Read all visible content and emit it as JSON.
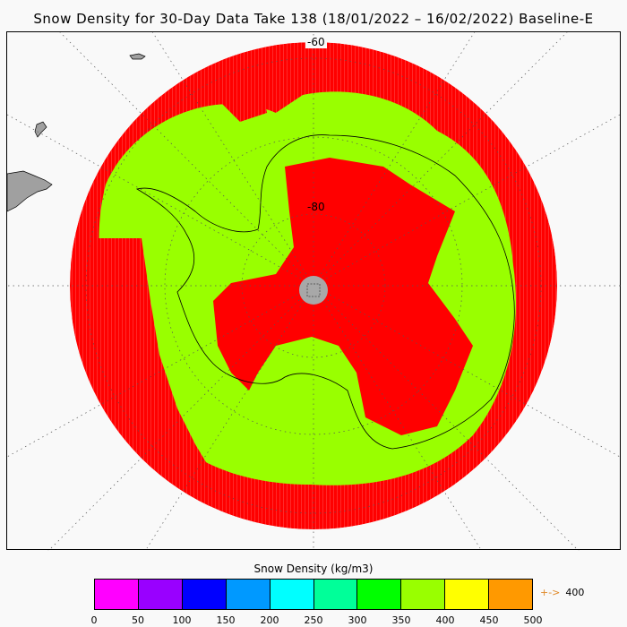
{
  "title": "Snow Density for 30-Day Data Take 138 (18/01/2022 – 16/02/2022) Baseline-E",
  "map": {
    "lat_label_outer": "-60",
    "lat_label_inner": "-80"
  },
  "colors": {
    "high_density": "#ff0000",
    "mid_density": "#99ff00",
    "land": "#a0a0a0",
    "pole_hole": "#a8a8a8"
  },
  "colorbar": {
    "title": "Snow Density (kg/m3)",
    "colors": [
      "#ff00ff",
      "#9900ff",
      "#0000ff",
      "#0099ff",
      "#00ffff",
      "#00ff99",
      "#00ff00",
      "#99ff00",
      "#ffff00",
      "#ff9900"
    ],
    "ticks": [
      "0",
      "50",
      "100",
      "150",
      "200",
      "250",
      "300",
      "350",
      "400",
      "450",
      "500"
    ],
    "arrow_text": "+->",
    "arrow_value": "400"
  }
}
